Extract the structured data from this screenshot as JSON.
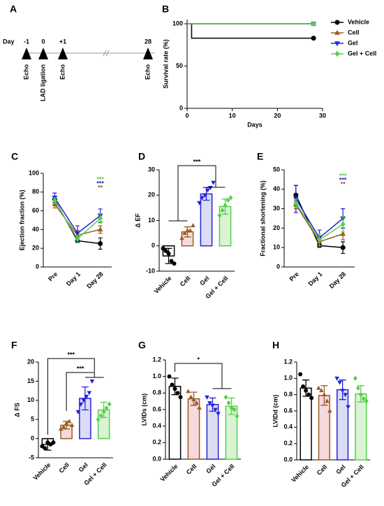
{
  "timeline": {
    "label": "A",
    "day_label": "Day",
    "days": [
      "-1",
      "0",
      "+1",
      "28"
    ],
    "events": [
      "Echo",
      "LAD ligation",
      "Echo",
      "Echo"
    ]
  },
  "chart_data": [
    {
      "type": "line",
      "label": "B",
      "ylabel": "Survival rate (%)",
      "xlabel": "Days",
      "xlim": [
        0,
        30
      ],
      "xticks": [
        0,
        10,
        20,
        30
      ],
      "ylim": [
        0,
        105
      ],
      "yticks": [
        0,
        50,
        100
      ],
      "legend": "right",
      "series": [
        {
          "name": "Vehicle",
          "color": "#000000",
          "marker": "circle",
          "x": [
            0,
            1,
            1,
            28
          ],
          "values": [
            100,
            100,
            83,
            83
          ]
        },
        {
          "name": "Cell",
          "color": "#9a5b24",
          "marker": "triangle",
          "x": [
            0,
            2,
            28
          ],
          "values": [
            100,
            100,
            100
          ]
        },
        {
          "name": "Gel",
          "color": "#2222dd",
          "marker": "triangle-down",
          "x": [
            0,
            28
          ],
          "values": [
            100,
            100
          ]
        },
        {
          "name": "Gel + Cell",
          "color": "#55d04a",
          "marker": "diamond",
          "x": [
            0,
            28
          ],
          "values": [
            100,
            100
          ]
        }
      ]
    },
    {
      "type": "line",
      "label": "C",
      "ylabel": "Ejection fraction (%)",
      "categories": [
        "Pre",
        "Day 1",
        "Day 28"
      ],
      "ylim": [
        0,
        100
      ],
      "yticks": [
        0,
        20,
        40,
        60,
        80,
        100
      ],
      "series": [
        {
          "color": "#000000",
          "marker": "circle",
          "values": [
            72,
            28,
            25
          ],
          "errors": [
            3,
            2,
            6
          ]
        },
        {
          "color": "#9a5b24",
          "marker": "triangle",
          "values": [
            67,
            34,
            40
          ],
          "errors": [
            4,
            5,
            4
          ]
        },
        {
          "color": "#2222dd",
          "marker": "triangle-down",
          "values": [
            74,
            36,
            55
          ],
          "errors": [
            5,
            8,
            7
          ]
        },
        {
          "color": "#55d04a",
          "marker": "diamond",
          "values": [
            71,
            30,
            52
          ],
          "errors": [
            3,
            4,
            5
          ]
        }
      ],
      "annotations": [
        {
          "text": "***",
          "color": "#55d04a"
        },
        {
          "text": "***",
          "color": "#2222dd"
        },
        {
          "text": "**",
          "color": "#9a5b24"
        }
      ]
    },
    {
      "type": "bar",
      "label": "D",
      "ylabel": "Δ EF",
      "categories": [
        "Vehicle",
        "Cell",
        "Gel",
        "Gel + Cell"
      ],
      "ylim": [
        -10,
        30
      ],
      "yticks": [
        -10,
        0,
        10,
        20,
        30
      ],
      "values": [
        -4,
        5.5,
        20.5,
        15.5
      ],
      "errors": [
        3,
        2,
        2.5,
        3
      ],
      "colors": [
        "#000000",
        "#9a5b24",
        "#2222dd",
        "#55d04a"
      ],
      "fills": [
        "#ffffff",
        "#f6d9dd",
        "#dcdcf5",
        "#d9f3d4"
      ],
      "markers": [
        "circle",
        "triangle",
        "triangle-down",
        "diamond"
      ],
      "points": [
        [
          -1,
          -2,
          -3,
          -6,
          -7
        ],
        [
          3,
          5,
          6,
          6,
          8
        ],
        [
          17,
          19,
          20,
          22,
          23,
          25
        ],
        [
          12,
          14,
          16,
          18,
          19
        ]
      ],
      "annotations": [
        {
          "text": "***"
        }
      ]
    },
    {
      "type": "line",
      "label": "E",
      "ylabel": "Fractional shortening (%)",
      "categories": [
        "Pre",
        "Day 1",
        "Day 28"
      ],
      "ylim": [
        0,
        50
      ],
      "yticks": [
        0,
        10,
        20,
        30,
        40,
        50
      ],
      "series": [
        {
          "color": "#000000",
          "marker": "circle",
          "values": [
            37,
            11,
            10
          ],
          "errors": [
            5,
            1,
            3
          ]
        },
        {
          "color": "#9a5b24",
          "marker": "triangle",
          "values": [
            32,
            13,
            17
          ],
          "errors": [
            2,
            3,
            3
          ]
        },
        {
          "color": "#2222dd",
          "marker": "triangle-down",
          "values": [
            35,
            15,
            25
          ],
          "errors": [
            7,
            4,
            5
          ]
        },
        {
          "color": "#55d04a",
          "marker": "diamond",
          "values": [
            33,
            14,
            22
          ],
          "errors": [
            2,
            3,
            4
          ]
        }
      ],
      "annotations": [
        {
          "text": "***",
          "color": "#55d04a"
        },
        {
          "text": "***",
          "color": "#2222dd"
        },
        {
          "text": "**",
          "color": "#9a5b24"
        }
      ]
    },
    {
      "type": "bar",
      "label": "F",
      "ylabel": "Δ FS",
      "categories": [
        "Vehicle",
        "Cell",
        "Gel",
        "Gel + Cell"
      ],
      "ylim": [
        -5,
        20
      ],
      "yticks": [
        -5,
        0,
        5,
        10,
        15,
        20
      ],
      "values": [
        -1.5,
        3.5,
        10.5,
        7.5
      ],
      "errors": [
        1.5,
        1,
        3,
        2
      ],
      "colors": [
        "#000000",
        "#9a5b24",
        "#2222dd",
        "#55d04a"
      ],
      "fills": [
        "#ffffff",
        "#f6d9dd",
        "#dcdcf5",
        "#d9f3d4"
      ],
      "markers": [
        "circle",
        "triangle",
        "triangle-down",
        "diamond"
      ],
      "points": [
        [
          -2,
          -2.5,
          -1,
          -1.5,
          -1
        ],
        [
          2.5,
          3,
          4,
          4.5,
          3.5
        ],
        [
          7,
          9,
          10,
          11,
          12,
          15
        ],
        [
          5,
          6,
          7,
          8,
          9
        ]
      ],
      "annotations": [
        {
          "text": "***"
        },
        {
          "text": "***"
        }
      ]
    },
    {
      "type": "bar",
      "label": "G",
      "ylabel": "LVIDs (cm)",
      "categories": [
        "Vehicle",
        "Cell",
        "Gel",
        "Gel + Cell"
      ],
      "ylim": [
        0,
        1.2
      ],
      "yticks": [
        {
          "value": 0,
          "label": "0.0"
        },
        0.2,
        0.4,
        0.6,
        0.8,
        {
          "value": 1,
          "label": "1.0"
        },
        1.2
      ],
      "values": [
        0.88,
        0.73,
        0.66,
        0.64
      ],
      "errors": [
        0.1,
        0.08,
        0.08,
        0.1
      ],
      "colors": [
        "#000000",
        "#9a5b24",
        "#2222dd",
        "#55d04a"
      ],
      "fills": [
        "#ffffff",
        "#f6d9dd",
        "#dcdcf5",
        "#d9f3d4"
      ],
      "markers": [
        "circle",
        "triangle",
        "triangle-down",
        "diamond"
      ],
      "points": [
        [
          1.0,
          0.9,
          0.85,
          0.8,
          0.75
        ],
        [
          0.82,
          0.75,
          0.72,
          0.68,
          0.62
        ],
        [
          0.75,
          0.68,
          0.65,
          0.6,
          0.55
        ],
        [
          0.75,
          0.68,
          0.62,
          0.6,
          0.52
        ]
      ],
      "annotations": [
        {
          "text": "*"
        }
      ]
    },
    {
      "type": "bar",
      "label": "H",
      "ylabel": "LVIDd (cm)",
      "categories": [
        "Vehicle",
        "Cell",
        "Gel",
        "Gel + Cell"
      ],
      "ylim": [
        0,
        1.2
      ],
      "yticks": [
        {
          "value": 0,
          "label": "0.0"
        },
        0.2,
        0.4,
        0.6,
        0.8,
        {
          "value": 1,
          "label": "1.0"
        },
        1.2
      ],
      "values": [
        0.88,
        0.79,
        0.86,
        0.81
      ],
      "errors": [
        0.1,
        0.12,
        0.12,
        0.1
      ],
      "colors": [
        "#000000",
        "#9a5b24",
        "#2222dd",
        "#55d04a"
      ],
      "fills": [
        "#ffffff",
        "#f6d9dd",
        "#dcdcf5",
        "#d9f3d4"
      ],
      "markers": [
        "circle",
        "triangle",
        "triangle-down",
        "diamond"
      ],
      "points": [
        [
          1.05,
          0.9,
          0.85,
          0.8,
          0.76
        ],
        [
          0.88,
          0.85,
          0.8,
          0.72,
          0.6
        ],
        [
          1.0,
          0.95,
          0.85,
          0.8,
          0.65
        ],
        [
          1.0,
          0.88,
          0.8,
          0.75,
          0.72
        ]
      ]
    }
  ]
}
